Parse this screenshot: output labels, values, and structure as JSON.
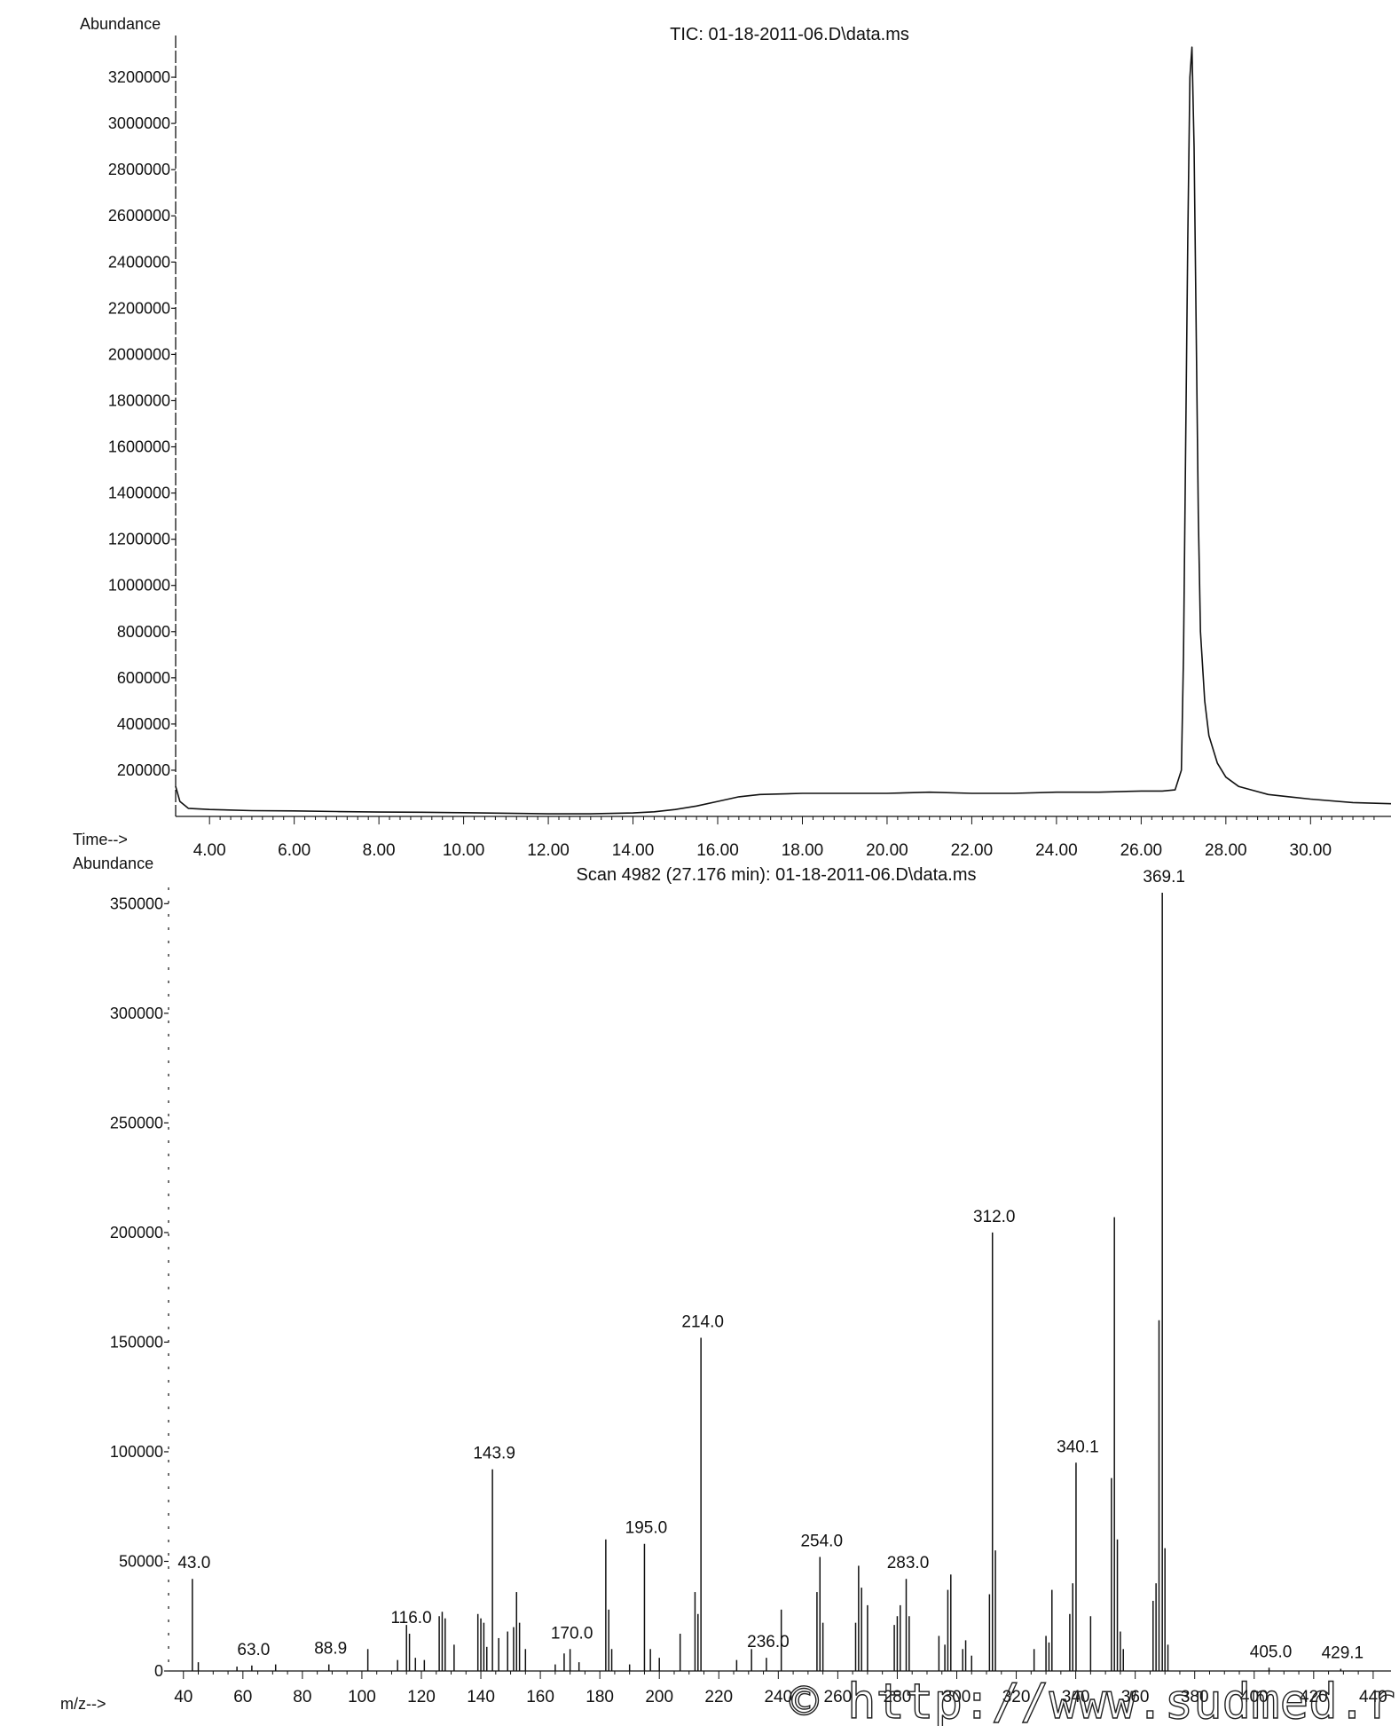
{
  "chart_data": [
    {
      "type": "line",
      "title": "TIC: 01-18-2011-06.D\\data.ms",
      "ylabel": "Abundance",
      "xlabel": "Time-->",
      "xlim": [
        3.2,
        31.9
      ],
      "ylim": [
        0,
        3350000
      ],
      "x_ticks": [
        "4.00",
        "6.00",
        "8.00",
        "10.00",
        "12.00",
        "14.00",
        "16.00",
        "18.00",
        "20.00",
        "22.00",
        "24.00",
        "26.00",
        "28.00",
        "30.00"
      ],
      "y_ticks": [
        "200000",
        "400000",
        "600000",
        "800000",
        "1000000",
        "1200000",
        "1400000",
        "1600000",
        "1800000",
        "2000000",
        "2200000",
        "2400000",
        "2600000",
        "2800000",
        "3000000",
        "3200000"
      ],
      "series": [
        {
          "x": [
            3.2,
            3.3,
            3.5,
            4,
            5,
            6,
            7,
            8,
            9,
            10,
            11,
            12,
            13,
            14,
            14.5,
            15,
            15.5,
            16,
            16.5,
            17,
            18,
            19,
            20,
            21,
            22,
            23,
            24,
            25,
            26,
            26.5,
            26.8,
            26.95,
            27.0,
            27.05,
            27.1,
            27.15,
            27.2,
            27.25,
            27.3,
            27.35,
            27.4,
            27.5,
            27.6,
            27.8,
            28.0,
            28.3,
            28.6,
            29,
            29.5,
            30,
            31,
            31.9
          ],
          "y": [
            130000,
            65000,
            35000,
            30000,
            25000,
            24000,
            21000,
            19000,
            18000,
            16000,
            14000,
            11000,
            11000,
            15000,
            20000,
            30000,
            45000,
            65000,
            85000,
            95000,
            100000,
            100000,
            100000,
            105000,
            100000,
            100000,
            105000,
            105000,
            110000,
            110000,
            115000,
            200000,
            700000,
            1600000,
            2500000,
            3200000,
            3330000,
            2900000,
            2100000,
            1300000,
            800000,
            500000,
            350000,
            230000,
            170000,
            130000,
            115000,
            95000,
            85000,
            75000,
            60000,
            55000
          ]
        }
      ]
    },
    {
      "type": "bar",
      "title": "Scan 4982 (27.176 min): 01-18-2011-06.D\\data.ms",
      "ylabel": "Abundance",
      "xlabel": "m/z-->",
      "xlim": [
        35,
        446
      ],
      "ylim": [
        0,
        355000
      ],
      "x_ticks": [
        "40",
        "60",
        "80",
        "100",
        "120",
        "140",
        "160",
        "180",
        "200",
        "220",
        "240",
        "260",
        "280",
        "300",
        "320",
        "340",
        "360",
        "380",
        "400",
        "420",
        "440"
      ],
      "y_ticks": [
        "0",
        "50000",
        "100000",
        "150000",
        "200000",
        "250000",
        "300000",
        "350000"
      ],
      "peaks": {
        "mz": [
          43,
          45,
          58,
          63,
          71,
          88.9,
          102,
          112,
          115,
          116,
          118,
          121,
          126,
          127,
          128,
          131,
          139,
          140,
          141,
          142,
          143.9,
          146,
          149,
          151,
          152,
          153,
          155,
          165,
          168,
          170,
          173,
          182,
          183,
          184,
          190,
          195,
          197,
          200,
          207,
          212,
          213,
          214,
          226,
          231,
          236,
          241,
          253,
          254,
          255,
          266,
          267,
          268,
          270,
          279,
          280,
          281,
          283,
          284,
          294,
          296,
          297,
          298,
          302,
          303,
          305,
          311,
          312,
          313,
          326,
          330,
          331,
          332,
          338,
          339,
          340.1,
          345,
          352,
          353,
          354,
          355,
          356,
          366,
          367,
          368,
          369.1,
          370,
          371,
          405,
          429.1
        ],
        "abundance": [
          42000,
          4000,
          2000,
          2500,
          3000,
          3000,
          10000,
          5000,
          21000,
          17000,
          6000,
          5000,
          25000,
          27000,
          24000,
          12000,
          26000,
          24000,
          22000,
          11000,
          92000,
          15000,
          18000,
          20000,
          36000,
          22000,
          10000,
          3000,
          8000,
          10000,
          4000,
          60000,
          28000,
          10000,
          3000,
          58000,
          10000,
          6000,
          17000,
          36000,
          26000,
          152000,
          5000,
          10000,
          6000,
          28000,
          36000,
          52000,
          22000,
          22000,
          48000,
          38000,
          30000,
          21000,
          25000,
          30000,
          42000,
          25000,
          16000,
          12000,
          37000,
          44000,
          10000,
          14000,
          7000,
          35000,
          200000,
          55000,
          10000,
          16000,
          13000,
          37000,
          26000,
          40000,
          95000,
          25000,
          88000,
          207000,
          60000,
          18000,
          10000,
          32000,
          40000,
          160000,
          355000,
          56000,
          12000,
          1500,
          1000
        ]
      },
      "annotations": [
        "43.0",
        "63.0",
        "88.9",
        "116.0",
        "143.9",
        "170.0",
        "195.0",
        "214.0",
        "236.0",
        "254.0",
        "283.0",
        "312.0",
        "340.1",
        "369.1",
        "405.0",
        "429.1"
      ]
    }
  ],
  "watermark": "© http://www.sudmed.ru",
  "colors": {
    "ink": "#111111",
    "background": "#ffffff"
  }
}
